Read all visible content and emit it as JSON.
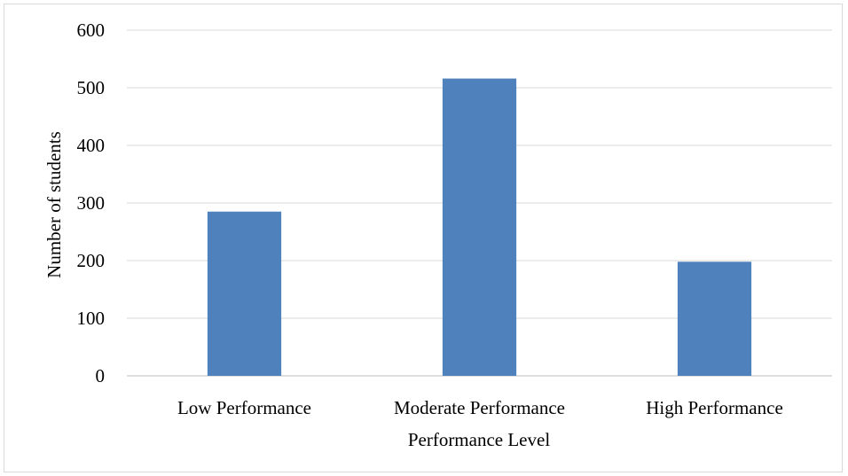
{
  "chart_data": {
    "type": "bar",
    "title": "",
    "xlabel": "Performance Level",
    "ylabel": "Number of students",
    "categories": [
      "Low Performance",
      "Moderate Performance",
      "High Performance"
    ],
    "series": [
      {
        "values": [
          285,
          516,
          198
        ]
      }
    ],
    "ylim": [
      0,
      600
    ],
    "yticks": [
      0,
      100,
      200,
      300,
      400,
      500,
      600
    ],
    "grid": true,
    "legend": "none",
    "colors": {
      "bar": "#4f81bd",
      "grid": "#d9d9d9",
      "axis": "#bfbfbf"
    }
  }
}
